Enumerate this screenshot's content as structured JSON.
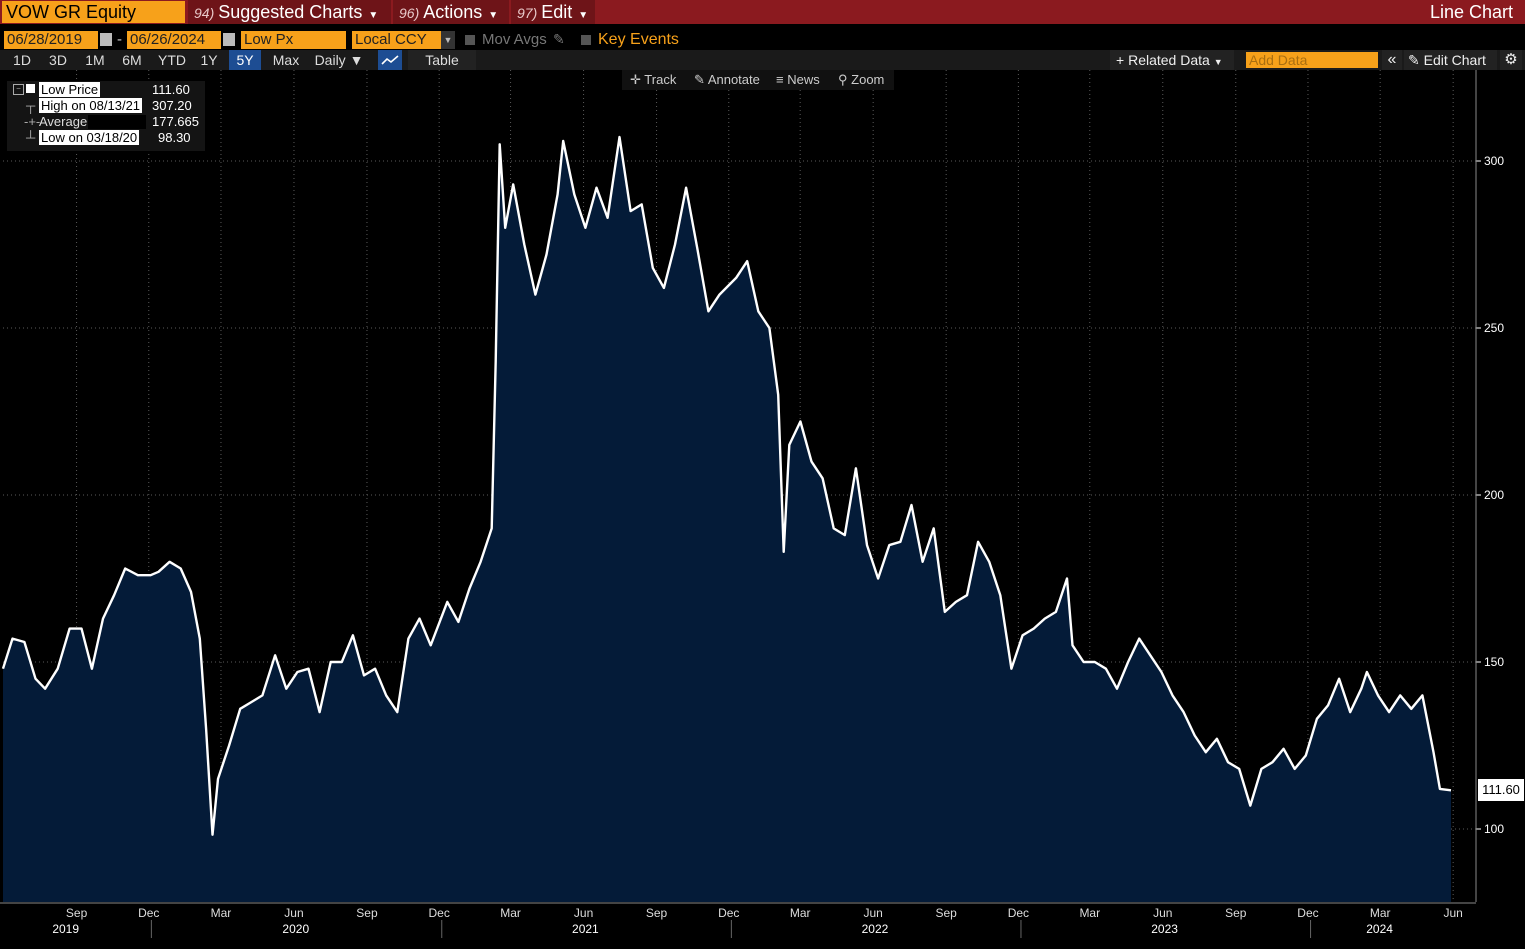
{
  "header": {
    "ticker": "VOW GR Equity",
    "suggested_num": "94)",
    "suggested_label": "Suggested Charts",
    "actions_num": "96)",
    "actions_label": "Actions",
    "edit_num": "97)",
    "edit_label": "Edit",
    "chart_type": "Line Chart"
  },
  "controls": {
    "start_date": "06/28/2019",
    "date_sep": "-",
    "end_date": "06/26/2024",
    "field": "Low Px",
    "currency": "Local CCY",
    "mov_avgs": "Mov Avgs",
    "key_events": "Key Events"
  },
  "periods": [
    "1D",
    "3D",
    "1M",
    "6M",
    "YTD",
    "1Y",
    "5Y",
    "Max"
  ],
  "active_period": "5Y",
  "frequency": "Daily",
  "table_label": "Table",
  "related_data": "Related Data",
  "add_data_placeholder": "Add Data",
  "edit_chart": "Edit Chart",
  "tools": {
    "track": "Track",
    "annotate": "Annotate",
    "news": "News",
    "zoom": "Zoom"
  },
  "legend": {
    "low_price_label": "Low Price",
    "low_price_value": "111.60",
    "high_label": "High on 08/13/21",
    "high_value": "307.20",
    "avg_label": "Average",
    "avg_value": "177.665",
    "low_label": "Low on 03/18/20",
    "low_value": "98.30"
  },
  "last_value": "111.60",
  "colors": {
    "area": "#041b38",
    "line": "#ffffff",
    "topbar": "#8b1a1f",
    "accent": "#f7a11a",
    "active": "#1d4d93"
  },
  "chart_data": {
    "type": "area",
    "title": "",
    "xlabel": "",
    "ylabel": "",
    "ylim": [
      78,
      327
    ],
    "xlim": [
      "2019-06-28",
      "2024-06-26"
    ],
    "yticks": [
      100,
      150,
      200,
      250,
      300
    ],
    "x_month_ticks": [
      "Sep",
      "Dec",
      "Mar",
      "Jun",
      "Sep",
      "Dec",
      "Mar",
      "Jun",
      "Sep",
      "Dec",
      "Mar",
      "Jun",
      "Sep",
      "Dec",
      "Mar",
      "Jun",
      "Sep",
      "Dec",
      "Mar",
      "Jun"
    ],
    "x_year_labels": [
      "2019",
      "2020",
      "2021",
      "2022",
      "2023",
      "2024"
    ],
    "series": [
      {
        "name": "Low Price",
        "points": [
          [
            "2019-06-28",
            148
          ],
          [
            "2019-07-10",
            157
          ],
          [
            "2019-07-25",
            156
          ],
          [
            "2019-08-08",
            145
          ],
          [
            "2019-08-20",
            142
          ],
          [
            "2019-09-05",
            148
          ],
          [
            "2019-09-20",
            160
          ],
          [
            "2019-10-05",
            160
          ],
          [
            "2019-10-18",
            148
          ],
          [
            "2019-11-01",
            163
          ],
          [
            "2019-11-15",
            170
          ],
          [
            "2019-11-29",
            178
          ],
          [
            "2019-12-15",
            176
          ],
          [
            "2019-12-31",
            176
          ],
          [
            "2020-01-10",
            177
          ],
          [
            "2020-01-24",
            180
          ],
          [
            "2020-02-07",
            178
          ],
          [
            "2020-02-20",
            171
          ],
          [
            "2020-03-02",
            157
          ],
          [
            "2020-03-10",
            130
          ],
          [
            "2020-03-18",
            98.3
          ],
          [
            "2020-03-25",
            115
          ],
          [
            "2020-04-08",
            125
          ],
          [
            "2020-04-22",
            136
          ],
          [
            "2020-05-06",
            138
          ],
          [
            "2020-05-20",
            140
          ],
          [
            "2020-06-05",
            152
          ],
          [
            "2020-06-19",
            142
          ],
          [
            "2020-07-03",
            147
          ],
          [
            "2020-07-17",
            148
          ],
          [
            "2020-07-31",
            135
          ],
          [
            "2020-08-14",
            150
          ],
          [
            "2020-08-28",
            150
          ],
          [
            "2020-09-11",
            158
          ],
          [
            "2020-09-25",
            146
          ],
          [
            "2020-10-09",
            148
          ],
          [
            "2020-10-23",
            140
          ],
          [
            "2020-11-06",
            135
          ],
          [
            "2020-11-20",
            157
          ],
          [
            "2020-12-04",
            163
          ],
          [
            "2020-12-18",
            155
          ],
          [
            "2021-01-08",
            168
          ],
          [
            "2021-01-22",
            162
          ],
          [
            "2021-02-05",
            172
          ],
          [
            "2021-02-19",
            180
          ],
          [
            "2021-03-05",
            190
          ],
          [
            "2021-03-10",
            240
          ],
          [
            "2021-03-15",
            305
          ],
          [
            "2021-03-22",
            280
          ],
          [
            "2021-04-01",
            293
          ],
          [
            "2021-04-15",
            275
          ],
          [
            "2021-04-29",
            260
          ],
          [
            "2021-05-13",
            272
          ],
          [
            "2021-05-27",
            290
          ],
          [
            "2021-06-03",
            306
          ],
          [
            "2021-06-17",
            290
          ],
          [
            "2021-07-01",
            280
          ],
          [
            "2021-07-15",
            292
          ],
          [
            "2021-07-29",
            283
          ],
          [
            "2021-08-13",
            307.2
          ],
          [
            "2021-08-27",
            285
          ],
          [
            "2021-09-10",
            287
          ],
          [
            "2021-09-24",
            268
          ],
          [
            "2021-10-08",
            262
          ],
          [
            "2021-10-22",
            275
          ],
          [
            "2021-11-05",
            292
          ],
          [
            "2021-11-19",
            274
          ],
          [
            "2021-12-03",
            255
          ],
          [
            "2021-12-17",
            260
          ],
          [
            "2022-01-07",
            265
          ],
          [
            "2022-01-21",
            270
          ],
          [
            "2022-02-04",
            255
          ],
          [
            "2022-02-18",
            250
          ],
          [
            "2022-03-01",
            230
          ],
          [
            "2022-03-08",
            183
          ],
          [
            "2022-03-15",
            215
          ],
          [
            "2022-03-29",
            222
          ],
          [
            "2022-04-12",
            210
          ],
          [
            "2022-04-26",
            205
          ],
          [
            "2022-05-10",
            190
          ],
          [
            "2022-05-24",
            188
          ],
          [
            "2022-06-07",
            208
          ],
          [
            "2022-06-21",
            185
          ],
          [
            "2022-07-05",
            175
          ],
          [
            "2022-07-19",
            185
          ],
          [
            "2022-08-02",
            186
          ],
          [
            "2022-08-16",
            197
          ],
          [
            "2022-08-30",
            180
          ],
          [
            "2022-09-13",
            190
          ],
          [
            "2022-09-27",
            165
          ],
          [
            "2022-10-11",
            168
          ],
          [
            "2022-10-25",
            170
          ],
          [
            "2022-11-08",
            186
          ],
          [
            "2022-11-22",
            180
          ],
          [
            "2022-12-06",
            170
          ],
          [
            "2022-12-20",
            148
          ],
          [
            "2023-01-03",
            158
          ],
          [
            "2023-01-17",
            160
          ],
          [
            "2023-01-31",
            163
          ],
          [
            "2023-02-14",
            165
          ],
          [
            "2023-02-28",
            175
          ],
          [
            "2023-03-07",
            155
          ],
          [
            "2023-03-21",
            150
          ],
          [
            "2023-04-04",
            150
          ],
          [
            "2023-04-18",
            148
          ],
          [
            "2023-05-02",
            142
          ],
          [
            "2023-05-16",
            150
          ],
          [
            "2023-05-30",
            157
          ],
          [
            "2023-06-13",
            152
          ],
          [
            "2023-06-27",
            147
          ],
          [
            "2023-07-11",
            140
          ],
          [
            "2023-07-25",
            135
          ],
          [
            "2023-08-08",
            128
          ],
          [
            "2023-08-22",
            123
          ],
          [
            "2023-09-05",
            127
          ],
          [
            "2023-09-19",
            120
          ],
          [
            "2023-10-03",
            118
          ],
          [
            "2023-10-17",
            107
          ],
          [
            "2023-10-31",
            118
          ],
          [
            "2023-11-14",
            120
          ],
          [
            "2023-11-28",
            124
          ],
          [
            "2023-12-12",
            118
          ],
          [
            "2023-12-26",
            122
          ],
          [
            "2024-01-09",
            133
          ],
          [
            "2024-01-23",
            137
          ],
          [
            "2024-02-06",
            145
          ],
          [
            "2024-02-20",
            135
          ],
          [
            "2024-03-05",
            142
          ],
          [
            "2024-03-12",
            147
          ],
          [
            "2024-03-26",
            140
          ],
          [
            "2024-04-09",
            135
          ],
          [
            "2024-04-23",
            140
          ],
          [
            "2024-05-07",
            136
          ],
          [
            "2024-05-21",
            140
          ],
          [
            "2024-06-04",
            123
          ],
          [
            "2024-06-12",
            112
          ],
          [
            "2024-06-26",
            111.6
          ]
        ]
      }
    ]
  }
}
